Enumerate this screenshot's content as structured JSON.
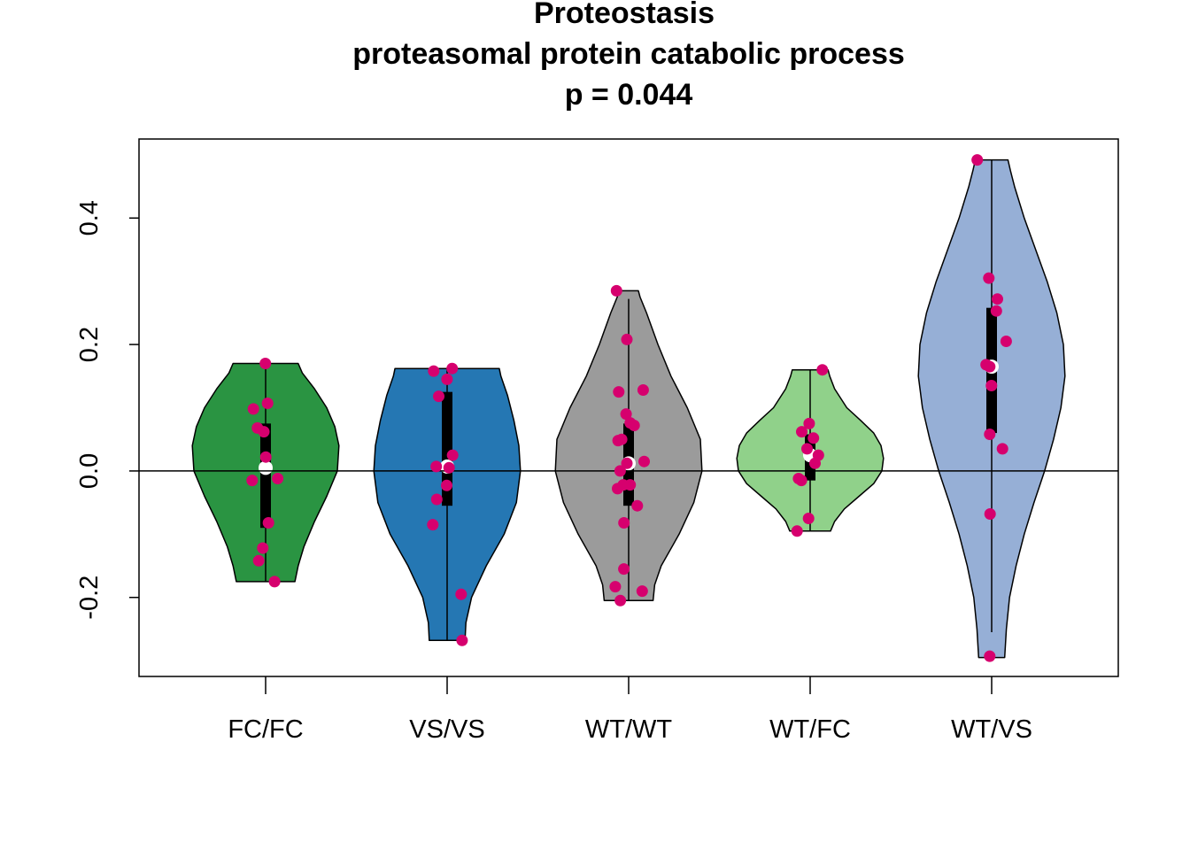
{
  "chart_data": {
    "type": "violin",
    "title": [
      "Proteostasis",
      "proteasomal protein catabolic process",
      "p = 0.044"
    ],
    "xlabel": "",
    "ylabel": "",
    "ylim": [
      -0.325,
      0.525
    ],
    "yticks": [
      -0.2,
      0.0,
      0.2,
      0.4
    ],
    "ytick_labels": [
      "-0.2",
      "0.0",
      "0.2",
      "0.4"
    ],
    "reference_line": 0.0,
    "grid": false,
    "point_color": "#D6006E",
    "groups": [
      {
        "category": "FC/FC",
        "color": "#2A9442",
        "min": -0.175,
        "max": 0.17,
        "q1": -0.09,
        "median": 0.005,
        "q3": 0.075,
        "whisker_low": -0.175,
        "whisker_high": 0.17,
        "density": [
          [
            -0.175,
            0.36
          ],
          [
            -0.15,
            0.4
          ],
          [
            -0.12,
            0.47
          ],
          [
            -0.08,
            0.6
          ],
          [
            -0.04,
            0.75
          ],
          [
            0.0,
            0.88
          ],
          [
            0.04,
            0.9
          ],
          [
            0.07,
            0.85
          ],
          [
            0.1,
            0.75
          ],
          [
            0.13,
            0.6
          ],
          [
            0.155,
            0.45
          ],
          [
            0.17,
            0.4
          ]
        ],
        "points": [
          0.17,
          0.107,
          0.098,
          0.068,
          0.062,
          0.022,
          -0.015,
          -0.012,
          -0.082,
          -0.122,
          -0.142,
          -0.175
        ]
      },
      {
        "category": "VS/VS",
        "color": "#2577B3",
        "min": -0.268,
        "max": 0.162,
        "q1": -0.055,
        "median": 0.007,
        "q3": 0.125,
        "whisker_low": -0.268,
        "whisker_high": 0.162,
        "density": [
          [
            -0.268,
            0.22
          ],
          [
            -0.24,
            0.23
          ],
          [
            -0.2,
            0.3
          ],
          [
            -0.15,
            0.48
          ],
          [
            -0.1,
            0.7
          ],
          [
            -0.05,
            0.85
          ],
          [
            0.0,
            0.9
          ],
          [
            0.04,
            0.88
          ],
          [
            0.08,
            0.82
          ],
          [
            0.12,
            0.74
          ],
          [
            0.15,
            0.66
          ],
          [
            0.162,
            0.64
          ]
        ],
        "points": [
          0.162,
          0.158,
          0.145,
          0.118,
          0.025,
          0.007,
          0.005,
          -0.023,
          -0.045,
          -0.085,
          -0.195,
          -0.268
        ]
      },
      {
        "category": "WT/WT",
        "color": "#9B9B9B",
        "min": -0.205,
        "max": 0.285,
        "q1": -0.055,
        "median": 0.012,
        "q3": 0.075,
        "whisker_low": -0.205,
        "whisker_high": 0.272,
        "density": [
          [
            -0.205,
            0.3
          ],
          [
            -0.18,
            0.32
          ],
          [
            -0.15,
            0.4
          ],
          [
            -0.1,
            0.62
          ],
          [
            -0.05,
            0.8
          ],
          [
            0.0,
            0.9
          ],
          [
            0.05,
            0.88
          ],
          [
            0.1,
            0.72
          ],
          [
            0.15,
            0.52
          ],
          [
            0.2,
            0.36
          ],
          [
            0.25,
            0.22
          ],
          [
            0.275,
            0.14
          ],
          [
            0.285,
            0.12
          ]
        ],
        "points": [
          0.285,
          0.208,
          0.128,
          0.125,
          0.09,
          0.076,
          0.072,
          0.05,
          0.048,
          0.015,
          0.012,
          0.0,
          -0.022,
          -0.022,
          -0.028,
          -0.055,
          -0.082,
          -0.155,
          -0.183,
          -0.19,
          -0.205
        ]
      },
      {
        "category": "WT/FC",
        "color": "#90D18A",
        "min": -0.095,
        "max": 0.16,
        "q1": -0.015,
        "median": 0.025,
        "q3": 0.058,
        "whisker_low": -0.095,
        "whisker_high": 0.16,
        "density": [
          [
            -0.095,
            0.25
          ],
          [
            -0.08,
            0.3
          ],
          [
            -0.06,
            0.42
          ],
          [
            -0.04,
            0.6
          ],
          [
            -0.02,
            0.78
          ],
          [
            0.0,
            0.88
          ],
          [
            0.02,
            0.9
          ],
          [
            0.04,
            0.87
          ],
          [
            0.06,
            0.78
          ],
          [
            0.08,
            0.62
          ],
          [
            0.1,
            0.45
          ],
          [
            0.13,
            0.3
          ],
          [
            0.15,
            0.24
          ],
          [
            0.16,
            0.22
          ]
        ],
        "points": [
          0.16,
          0.075,
          0.062,
          0.052,
          0.035,
          0.025,
          0.012,
          -0.012,
          -0.015,
          -0.075,
          -0.095
        ]
      },
      {
        "category": "WT/VS",
        "color": "#96AFD6",
        "min": -0.295,
        "max": 0.492,
        "q1": 0.06,
        "median": 0.165,
        "q3": 0.258,
        "whisker_low": -0.255,
        "whisker_high": 0.492,
        "density": [
          [
            -0.295,
            0.16
          ],
          [
            -0.25,
            0.18
          ],
          [
            -0.2,
            0.22
          ],
          [
            -0.15,
            0.3
          ],
          [
            -0.1,
            0.4
          ],
          [
            -0.05,
            0.52
          ],
          [
            0.0,
            0.65
          ],
          [
            0.05,
            0.76
          ],
          [
            0.1,
            0.85
          ],
          [
            0.15,
            0.9
          ],
          [
            0.2,
            0.88
          ],
          [
            0.25,
            0.8
          ],
          [
            0.3,
            0.68
          ],
          [
            0.35,
            0.54
          ],
          [
            0.4,
            0.4
          ],
          [
            0.45,
            0.28
          ],
          [
            0.475,
            0.23
          ],
          [
            0.492,
            0.2
          ]
        ],
        "points": [
          0.492,
          0.305,
          0.272,
          0.253,
          0.205,
          0.168,
          0.165,
          0.135,
          0.058,
          0.035,
          -0.068,
          -0.293
        ]
      }
    ]
  }
}
